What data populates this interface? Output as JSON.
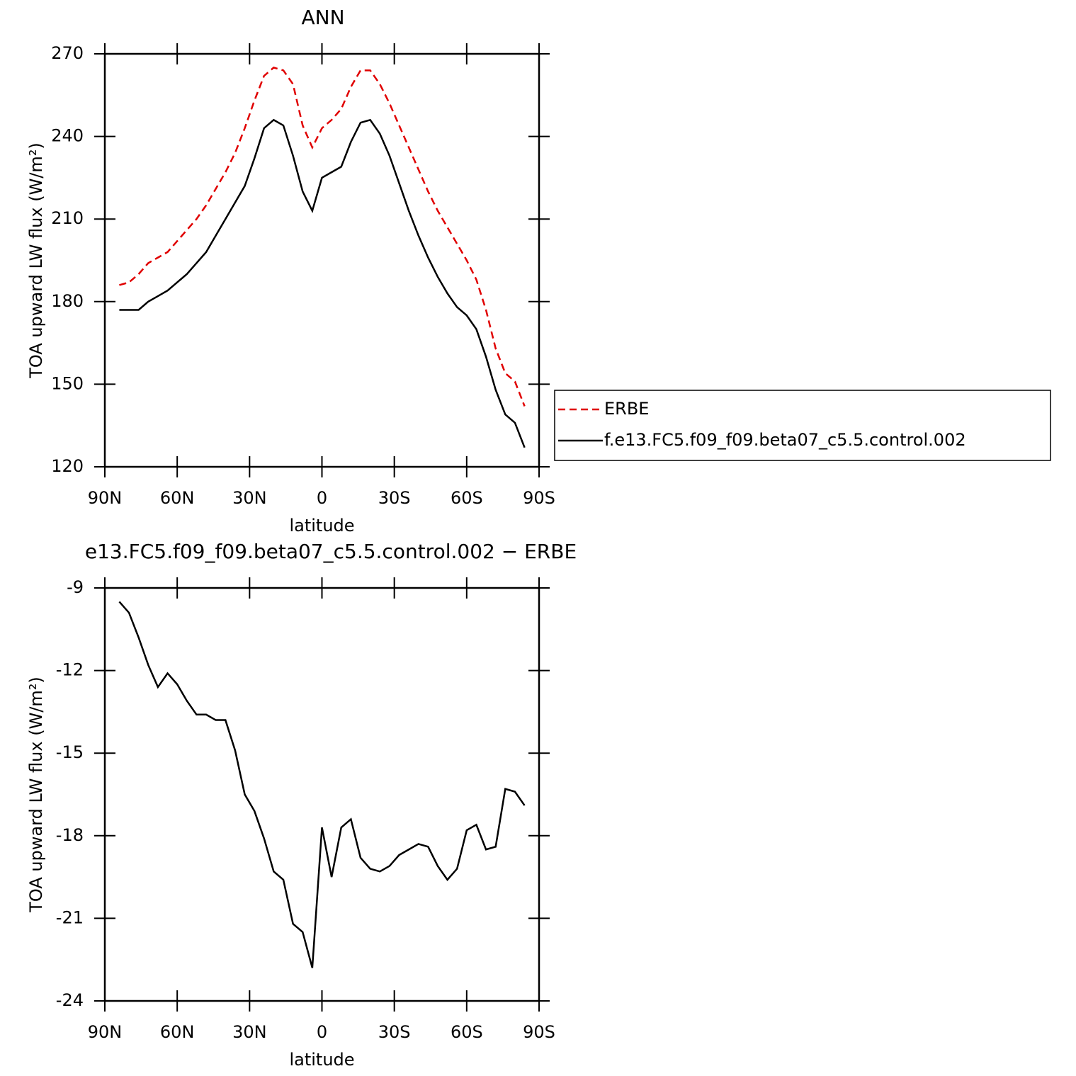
{
  "chart_data": [
    {
      "type": "line",
      "title": "ANN",
      "xlabel": "latitude",
      "ylabel": "TOA upward LW flux (W/m²)",
      "x": [
        84,
        80,
        76,
        72,
        68,
        64,
        60,
        56,
        52,
        48,
        44,
        40,
        36,
        32,
        28,
        24,
        20,
        16,
        12,
        8,
        4,
        0,
        -4,
        -8,
        -12,
        -16,
        -20,
        -24,
        -28,
        -32,
        -36,
        -40,
        -44,
        -48,
        -52,
        -56,
        -60,
        -64,
        -68,
        -72,
        -76,
        -80,
        -84
      ],
      "series": [
        {
          "name": "ERBE",
          "color": "#e00000",
          "linestyle": "dashed",
          "values": [
            186,
            187,
            190,
            194,
            196,
            198,
            202,
            206,
            210,
            215,
            221,
            227,
            234,
            243,
            253,
            262,
            265,
            264,
            259,
            244,
            236,
            243,
            246,
            250,
            258,
            264,
            264,
            259,
            252,
            244,
            236,
            228,
            220,
            213,
            207,
            201,
            195,
            188,
            177,
            163,
            154,
            151,
            142
          ]
        },
        {
          "name": "f.e13.FC5.f09_f09.beta07_c5.5.control.002",
          "color": "#000000",
          "linestyle": "solid",
          "values": [
            177,
            177,
            177,
            180,
            182,
            184,
            187,
            190,
            194,
            198,
            204,
            210,
            216,
            222,
            232,
            243,
            246,
            244,
            233,
            220,
            213,
            225,
            227,
            229,
            238,
            245,
            246,
            241,
            233,
            223,
            213,
            204,
            196,
            189,
            183,
            178,
            175,
            170,
            160,
            148,
            139,
            136,
            127
          ]
        }
      ],
      "xlim": [
        90,
        -90
      ],
      "xticks": [
        {
          "value": 90,
          "label": "90N"
        },
        {
          "value": 60,
          "label": "60N"
        },
        {
          "value": 30,
          "label": "30N"
        },
        0,
        {
          "value": -30,
          "label": "30S"
        },
        {
          "value": -60,
          "label": "60S"
        },
        {
          "value": -90,
          "label": "90S"
        }
      ],
      "ylim": [
        120,
        270
      ],
      "yticks": [
        120,
        150,
        180,
        210,
        240,
        270
      ],
      "legend": "right"
    },
    {
      "type": "line",
      "title": "e13.FC5.f09_f09.beta07_c5.5.control.002 − ERBE",
      "xlabel": "latitude",
      "ylabel": "TOA upward LW flux (W/m²)",
      "x": [
        84,
        80,
        76,
        72,
        68,
        64,
        60,
        56,
        52,
        48,
        44,
        40,
        36,
        32,
        28,
        24,
        20,
        16,
        12,
        8,
        4,
        0,
        -4,
        -8,
        -12,
        -16,
        -20,
        -24,
        -28,
        -32,
        -36,
        -40,
        -44,
        -48,
        -52,
        -56,
        -60,
        -64,
        -68,
        -72,
        -76,
        -80,
        -84
      ],
      "series": [
        {
          "color": "#000000",
          "linestyle": "solid",
          "values": [
            -9.5,
            -9.9,
            -10.8,
            -11.8,
            -12.6,
            -12.1,
            -12.5,
            -13.1,
            -13.6,
            -13.6,
            -13.8,
            -13.8,
            -14.9,
            -16.5,
            -17.1,
            -18.1,
            -19.3,
            -19.6,
            -21.2,
            -21.5,
            -22.8,
            -17.7,
            -19.5,
            -17.7,
            -17.4,
            -18.8,
            -19.2,
            -19.3,
            -19.1,
            -18.7,
            -18.5,
            -18.3,
            -18.4,
            -19.1,
            -19.6,
            -19.2,
            -17.8,
            -17.6,
            -18.5,
            -18.4,
            -16.3,
            -16.4,
            -16.9
          ]
        }
      ],
      "xlim": [
        90,
        -90
      ],
      "xticks": [
        {
          "value": 90,
          "label": "90N"
        },
        {
          "value": 60,
          "label": "60N"
        },
        {
          "value": 30,
          "label": "30N"
        },
        0,
        {
          "value": -30,
          "label": "30S"
        },
        {
          "value": -60,
          "label": "60S"
        },
        {
          "value": -90,
          "label": "90S"
        }
      ],
      "ylim": [
        -24,
        -9
      ],
      "yticks": [
        -24,
        -21,
        -18,
        -15,
        -12,
        -9
      ]
    }
  ]
}
